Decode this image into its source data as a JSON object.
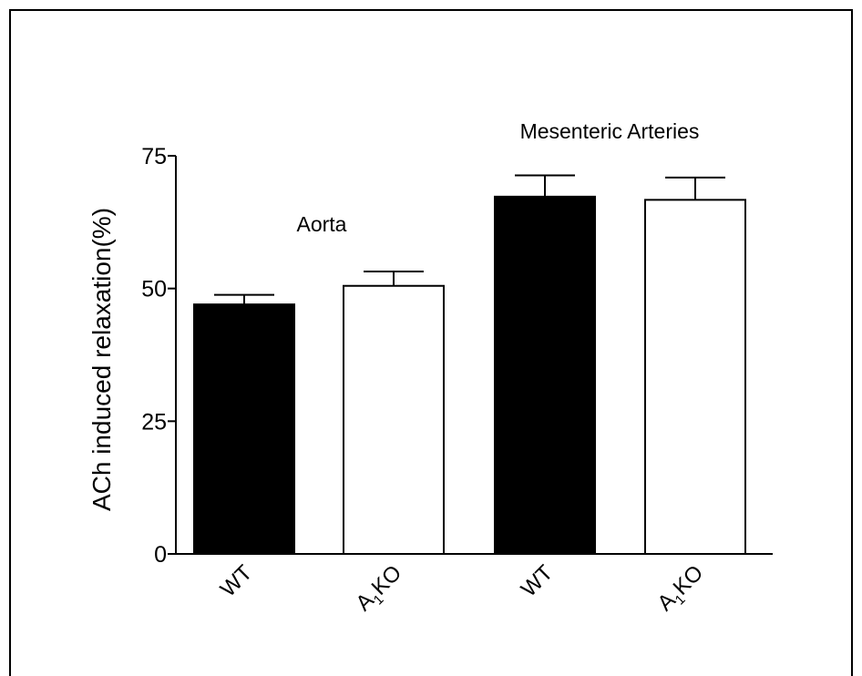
{
  "chart_data": {
    "type": "bar",
    "ylabel": "ACh induced relaxation(%)",
    "ylim": [
      0,
      75
    ],
    "yticks": [
      0,
      25,
      50,
      75
    ],
    "groups": [
      {
        "label": "Aorta",
        "bars": [
          {
            "category": "WT",
            "value": 47,
            "error": 1.8,
            "fill": "#000000"
          },
          {
            "category": "A1KO",
            "value": 50.5,
            "error": 2.7,
            "fill": "#ffffff"
          }
        ]
      },
      {
        "label": "Mesenteric Arteries",
        "bars": [
          {
            "category": "WT",
            "value": 67.3,
            "error": 4.0,
            "fill": "#000000"
          },
          {
            "category": "A1KO",
            "value": 66.7,
            "error": 4.2,
            "fill": "#ffffff"
          }
        ]
      }
    ],
    "tick_label_parts": {
      "WT": {
        "base": "WT",
        "sub": "",
        "rest": ""
      },
      "A1KO": {
        "base": "A",
        "sub": "1",
        "rest": "KO"
      }
    },
    "grid": false,
    "legend": "none"
  }
}
